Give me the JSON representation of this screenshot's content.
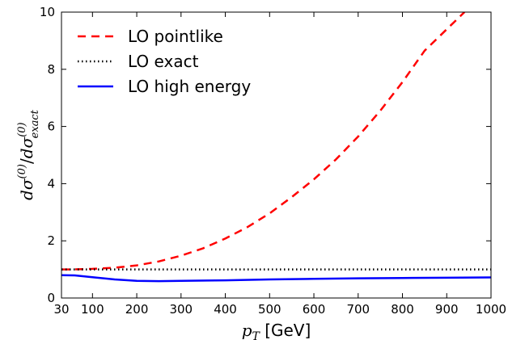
{
  "chart_data": {
    "type": "line",
    "title": "",
    "xlabel": {
      "var": "p",
      "sub": "T",
      "unit": " [GeV]"
    },
    "ylabel": {
      "num": "dσ",
      "num_sup": "(0)",
      "den": "dσ",
      "den_sup": "(0)",
      "den_sub": "exact"
    },
    "xlim": [
      30,
      1000
    ],
    "ylim": [
      0,
      10
    ],
    "x_ticks": [
      30,
      100,
      200,
      300,
      400,
      500,
      600,
      700,
      800,
      900,
      1000
    ],
    "y_ticks": [
      0,
      2,
      4,
      6,
      8,
      10
    ],
    "grid": false,
    "legend_position": "top-left",
    "series": [
      {
        "name": "LO pointlike",
        "color": "#ff0000",
        "style": "dashed",
        "x": [
          30,
          50,
          100,
          150,
          200,
          250,
          300,
          350,
          400,
          450,
          500,
          550,
          600,
          650,
          700,
          750,
          800,
          850,
          900,
          940
        ],
        "y": [
          1.0,
          1.0,
          1.02,
          1.06,
          1.14,
          1.28,
          1.48,
          1.74,
          2.08,
          2.48,
          2.96,
          3.53,
          4.15,
          4.85,
          5.65,
          6.55,
          7.55,
          8.65,
          9.4,
          10.0
        ]
      },
      {
        "name": "LO exact",
        "color": "#000000",
        "style": "dotted",
        "x": [
          30,
          1000
        ],
        "y": [
          1.0,
          1.0
        ]
      },
      {
        "name": "LO high energy",
        "color": "#0000ff",
        "style": "solid",
        "x": [
          30,
          60,
          100,
          150,
          200,
          250,
          300,
          400,
          500,
          600,
          700,
          800,
          900,
          1000
        ],
        "y": [
          0.8,
          0.79,
          0.73,
          0.65,
          0.6,
          0.59,
          0.6,
          0.62,
          0.65,
          0.67,
          0.69,
          0.7,
          0.71,
          0.72
        ]
      }
    ]
  }
}
